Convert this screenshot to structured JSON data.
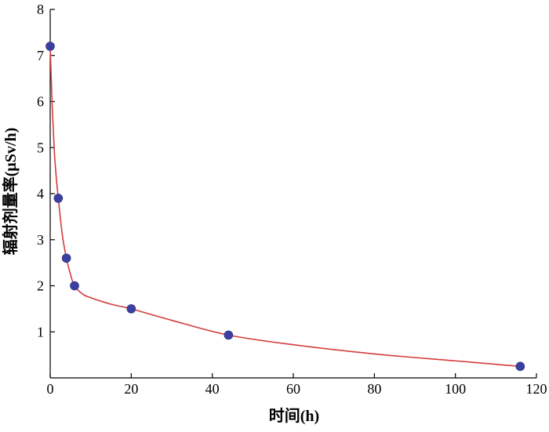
{
  "chart_data": {
    "type": "scatter",
    "title": "",
    "xlabel": "时间(h)",
    "ylabel": "辐射剂量率(μSv/h)",
    "xlim": [
      0,
      120
    ],
    "ylim": [
      0,
      8
    ],
    "x_ticks": [
      0,
      20,
      40,
      60,
      80,
      100,
      120
    ],
    "y_ticks": [
      1,
      2,
      3,
      4,
      5,
      6,
      7,
      8
    ],
    "x_tick_labels": [
      "0",
      "20",
      "40",
      "60",
      "80",
      "100",
      "120"
    ],
    "y_tick_labels": [
      "1",
      "2",
      "3",
      "4",
      "5",
      "6",
      "7",
      "8"
    ],
    "grid": false,
    "legend": "none",
    "series": [
      {
        "kind": "points",
        "color": "#3b3fa0",
        "x": [
          0,
          2,
          4,
          6,
          20,
          44,
          116
        ],
        "y": [
          7.2,
          3.9,
          2.6,
          2.0,
          1.5,
          0.93,
          0.25
        ]
      },
      {
        "kind": "fit-curve",
        "color": "#d43c3c",
        "x": [
          0,
          0.5,
          1,
          1.5,
          2,
          3,
          4,
          5,
          6,
          8,
          10,
          15,
          20,
          30,
          44,
          60,
          80,
          100,
          116
        ],
        "y": [
          7.2,
          5.9,
          4.95,
          4.35,
          3.9,
          3.1,
          2.6,
          2.25,
          2.0,
          1.82,
          1.74,
          1.6,
          1.5,
          1.25,
          0.93,
          0.72,
          0.52,
          0.37,
          0.25
        ]
      }
    ]
  }
}
